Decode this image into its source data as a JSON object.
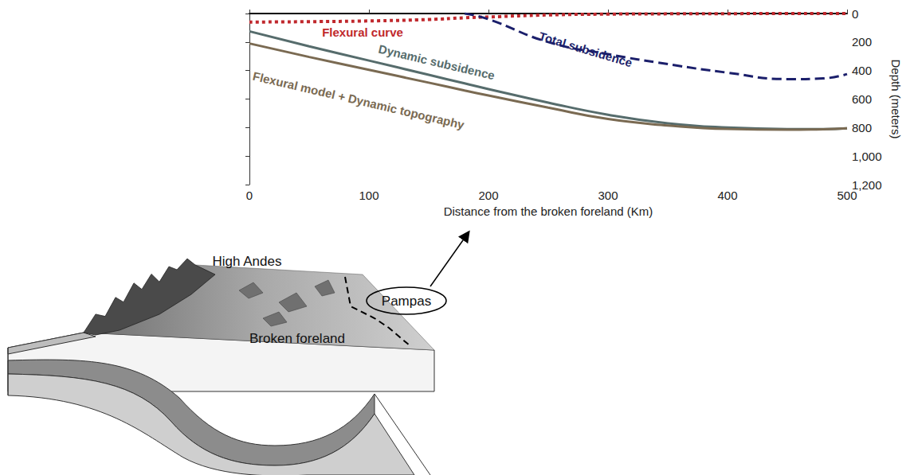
{
  "chart_data": {
    "type": "line",
    "x_label": "Distance from the broken foreland (Km)",
    "y_label": "Depth (meters)",
    "x": [
      0,
      50,
      100,
      150,
      180,
      200,
      250,
      300,
      350,
      400,
      450,
      480,
      500
    ],
    "series": [
      {
        "name": "Flexural curve",
        "color": "#c0282d",
        "line_style": "dotted",
        "values": [
          60,
          57,
          52,
          42,
          30,
          24,
          10,
          4,
          2,
          1,
          0,
          0,
          0
        ]
      },
      {
        "name": "Total subsidence",
        "color": "#1b1f6b",
        "line_style": "dashed",
        "values": [
          null,
          null,
          null,
          null,
          0,
          40,
          200,
          285,
          355,
          415,
          460,
          455,
          425
        ]
      },
      {
        "name": "Dynamic subsidence",
        "color": "#566c6c",
        "line_style": "solid",
        "values": [
          125,
          230,
          330,
          430,
          490,
          530,
          625,
          710,
          770,
          800,
          810,
          810,
          805
        ]
      },
      {
        "name": "Flexural model + Dynamic topography",
        "color": "#7a6a52",
        "line_style": "solid",
        "values": [
          210,
          305,
          395,
          485,
          540,
          575,
          660,
          740,
          785,
          810,
          815,
          812,
          805
        ]
      }
    ],
    "xlim": [
      0,
      500
    ],
    "xticks": [
      0,
      100,
      200,
      300,
      400,
      500
    ],
    "ylim": [
      1200,
      0
    ],
    "yticks": [
      0,
      200,
      400,
      600,
      800,
      1000,
      1200
    ],
    "grid": false
  },
  "diagram": {
    "labels": {
      "mountains": "High Andes",
      "foreland": "Broken foreland",
      "plain": "Pampas"
    }
  }
}
